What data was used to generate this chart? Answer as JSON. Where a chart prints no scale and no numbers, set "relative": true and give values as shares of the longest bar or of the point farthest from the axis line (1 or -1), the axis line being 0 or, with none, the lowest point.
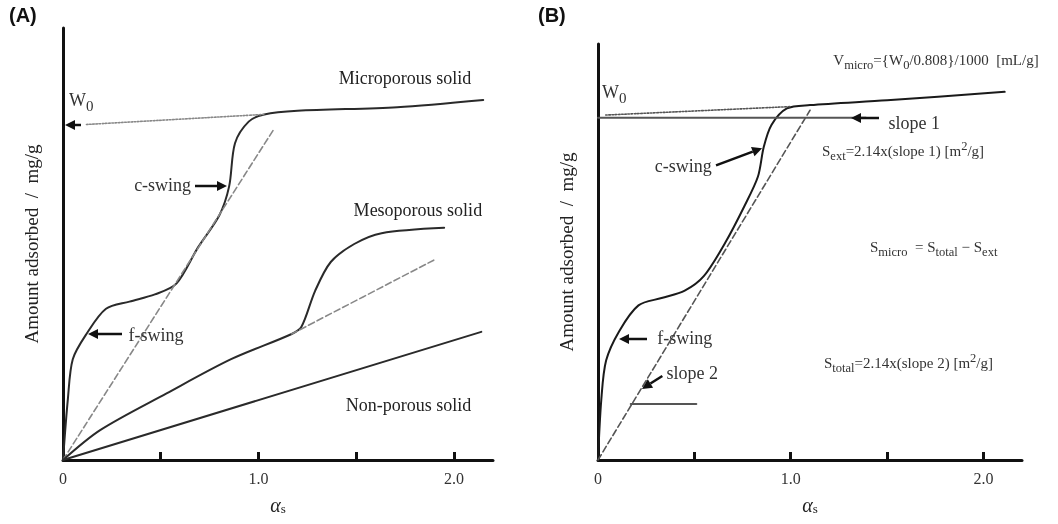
{
  "chart_data": [
    {
      "type": "line",
      "title": "(A)",
      "xlabel": "α$_{s}$",
      "ylabel": "Amount adsorbed  /  mg/g",
      "relative": true,
      "xlim": [
        0,
        2.2
      ],
      "xticks": [
        0,
        {
          "value": 0.5,
          "label": null
        },
        {
          "value": 1,
          "label": "1.0"
        },
        {
          "value": 1.5,
          "label": null
        },
        {
          "value": 2,
          "label": "2.0"
        }
      ],
      "series": [
        {
          "name": "Microporous solid",
          "color": "#2a2a2a",
          "line_style": "solid",
          "x": [
            0,
            0.025,
            0.05,
            0.12,
            0.22,
            0.34,
            0.47,
            0.58,
            0.69,
            0.8,
            0.85,
            0.88,
            0.95,
            1.03,
            1.2,
            1.71,
            2.15
          ],
          "values": [
            0,
            0.17,
            0.28,
            0.35,
            0.42,
            0.44,
            0.46,
            0.49,
            0.59,
            0.68,
            0.76,
            0.88,
            0.94,
            0.96,
            0.97,
            0.98,
            1
          ]
        },
        {
          "color": "#888888",
          "line_style": "dashed",
          "x": [
            0,
            1.08
          ],
          "values": [
            0,
            0.92
          ]
        },
        {
          "color": "#888888",
          "line_style": "dotted",
          "x": [
            0.12,
            1.03
          ],
          "values": [
            0.932,
            0.96
          ]
        },
        {
          "name": "Mesoporous solid",
          "color": "#2a2a2a",
          "line_style": "solid",
          "x": [
            0,
            0.19,
            0.53,
            0.86,
            1.17,
            1.22,
            1.29,
            1.37,
            1.49,
            1.63,
            1.95
          ],
          "values": [
            0,
            0.083,
            0.185,
            0.28,
            0.35,
            0.37,
            0.47,
            0.55,
            0.6,
            0.63,
            0.645
          ]
        },
        {
          "color": "#888888",
          "line_style": "dashed",
          "x": [
            1.17,
            1.9
          ],
          "values": [
            0.35,
            0.556
          ]
        },
        {
          "name": "Non-porous solid",
          "color": "#2a2a2a",
          "line_style": "solid",
          "x": [
            0,
            2.14
          ],
          "values": [
            0,
            0.356
          ]
        }
      ],
      "annotations": [
        "W$_{0}$",
        {
          "text": "c-swing",
          "x": 0.85,
          "y": 0.76
        },
        {
          "text": "f-swing",
          "x": 0.12,
          "y": 0.35
        }
      ]
    },
    {
      "type": "line",
      "title": "(B)",
      "xlabel": "α$_{s}$",
      "ylabel": "Amount adsorbed  /  mg/g",
      "relative": true,
      "xlim": [
        0,
        2.2
      ],
      "xticks": [
        0,
        {
          "value": 0.5,
          "label": null
        },
        {
          "value": 1,
          "label": "1.0"
        },
        {
          "value": 1.5,
          "label": null
        },
        {
          "value": 2,
          "label": "2.0"
        }
      ],
      "series": [
        {
          "color": "#1a1a1a",
          "line_style": "solid",
          "x": [
            0,
            0.017,
            0.042,
            0.11,
            0.21,
            0.33,
            0.45,
            0.55,
            0.66,
            0.76,
            0.83,
            0.86,
            0.9,
            0.98,
            1.1,
            1.5,
            2.11
          ],
          "values": [
            0,
            0.163,
            0.27,
            0.35,
            0.42,
            0.44,
            0.46,
            0.5,
            0.59,
            0.69,
            0.77,
            0.85,
            0.91,
            0.955,
            0.964,
            0.977,
            1
          ]
        },
        {
          "color": "#555555",
          "line_style": "dashed",
          "x": [
            0,
            1.1
          ],
          "values": [
            0,
            0.95
          ]
        },
        {
          "color": "#555555",
          "line_style": "dotted",
          "x": [
            0.04,
            1
          ],
          "values": [
            0.937,
            0.96
          ]
        },
        {
          "color": "#555555",
          "line_style": "solid",
          "x": [
            0,
            1.39
          ],
          "values": [
            0.93,
            0.93
          ]
        },
        {
          "color": "#555555",
          "line_style": "solid",
          "x": [
            0.17,
            0.51
          ],
          "values": [
            0.152,
            0.152
          ]
        }
      ],
      "annotations": [
        {
          "text": "W$_{0}$",
          "x": 0,
          "y": 0.937
        },
        {
          "text": "c-swing",
          "x": 0.86,
          "y": 0.85
        },
        {
          "text": "f-swing",
          "x": 0.1,
          "y": 0.33
        },
        {
          "text": "slope 1",
          "x": 1.3,
          "y": 0.93
        },
        {
          "text": "slope 2",
          "x": 0.22,
          "y": 0.19
        },
        "V$_{micro}$={W$_{0}$/0.808}/1000  [mL/g]",
        "S$_{ext}$=2.14x(slope 1) [m$^{2}$/g]",
        "S$_{micro}$  = S$_{total}$ − S$_{ext}$",
        "S$_{total}$=2.14x(slope 2) [m$^{2}$/g]"
      ]
    }
  ]
}
